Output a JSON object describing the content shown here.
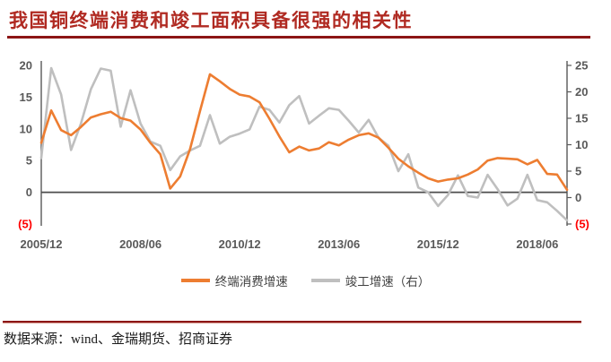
{
  "page": {
    "title": "我国铜终端消费和竣工面积具备很强的相关性",
    "source": "数据来源：wind、金瑞期货、招商证券"
  },
  "legend": [
    {
      "label": "终端消费增速",
      "color": "#ED7D31"
    },
    {
      "label": "竣工增速（右）",
      "color": "#BFBFBF"
    }
  ],
  "colors": {
    "accent_red": "#B02A22",
    "rule_red": "#8C1616",
    "axis_text": "#595959",
    "negative_tick": "#FF0000",
    "line_orange": "#ED7D31",
    "line_gray": "#BFBFBF",
    "axis_line": "#595959",
    "zero_line": "#4D4D4D",
    "legend_text": "#404040",
    "source_text": "#1A1A1A"
  },
  "chart_data": {
    "type": "line",
    "title": "我国铜终端消费和竣工面积具备很强的相关性",
    "xlabel": "",
    "ylabel_left": "",
    "ylabel_right": "",
    "grid": false,
    "legend_position": "bottom",
    "x": [
      "2005/12",
      "2006/03",
      "2006/06",
      "2006/09",
      "2006/12",
      "2007/03",
      "2007/06",
      "2007/09",
      "2007/12",
      "2008/03",
      "2008/06",
      "2008/09",
      "2008/12",
      "2009/03",
      "2009/06",
      "2009/09",
      "2009/12",
      "2010/03",
      "2010/06",
      "2010/09",
      "2010/12",
      "2011/03",
      "2011/06",
      "2011/09",
      "2011/12",
      "2012/03",
      "2012/06",
      "2012/09",
      "2012/12",
      "2013/03",
      "2013/06",
      "2013/09",
      "2013/12",
      "2014/03",
      "2014/06",
      "2014/09",
      "2014/12",
      "2015/03",
      "2015/06",
      "2015/09",
      "2015/12",
      "2016/03",
      "2016/06",
      "2016/09",
      "2016/12",
      "2017/03",
      "2017/06",
      "2017/09",
      "2017/12",
      "2018/03",
      "2018/06",
      "2018/09",
      "2018/12",
      "2019/03"
    ],
    "x_tick_labels": [
      "2005/12",
      "2008/06",
      "2010/12",
      "2013/06",
      "2015/12",
      "2018/06"
    ],
    "x_tick_indices": [
      0,
      10,
      20,
      30,
      40,
      50
    ],
    "series": [
      {
        "name": "终端消费增速",
        "axis": "left",
        "color": "#ED7D31",
        "values": [
          7.8,
          12.9,
          9.8,
          9.0,
          10.3,
          11.8,
          12.3,
          12.7,
          11.7,
          11.3,
          9.9,
          7.8,
          6.0,
          0.6,
          2.5,
          6.8,
          12.8,
          18.6,
          17.5,
          16.3,
          15.4,
          15.1,
          14.2,
          11.6,
          8.8,
          6.3,
          7.2,
          6.6,
          6.9,
          7.9,
          7.4,
          8.3,
          9.0,
          9.3,
          8.6,
          7.0,
          5.3,
          4.1,
          3.1,
          2.2,
          1.7,
          2.0,
          2.2,
          2.8,
          3.6,
          5.0,
          5.4,
          5.3,
          5.2,
          4.4,
          5.1,
          2.9,
          2.8,
          0.4
        ]
      },
      {
        "name": "竣工增速（右）",
        "axis": "right",
        "color": "#BFBFBF",
        "values": [
          7.5,
          24.5,
          19.5,
          9.0,
          14.0,
          20.5,
          24.4,
          24.0,
          13.4,
          20.3,
          14.0,
          10.6,
          9.8,
          5.2,
          7.8,
          8.9,
          9.8,
          15.6,
          10.2,
          11.5,
          12.1,
          12.9,
          17.2,
          16.6,
          14.2,
          17.5,
          19.2,
          14.0,
          15.5,
          16.9,
          16.6,
          14.5,
          12.3,
          14.7,
          11.3,
          9.8,
          5.0,
          8.2,
          1.9,
          1.0,
          -1.6,
          0.5,
          4.2,
          0.3,
          0.0,
          4.3,
          1.6,
          -1.5,
          -0.2,
          4.3,
          -0.5,
          -0.9,
          -2.5,
          -4.3
        ]
      }
    ],
    "axes": {
      "left": {
        "range": [
          -5,
          20
        ],
        "ticks": [
          20,
          15,
          10,
          5,
          0,
          -5
        ],
        "tick_labels": [
          "20",
          "15",
          "10",
          "5",
          "0",
          "(5)"
        ]
      },
      "right": {
        "range": [
          -5,
          25
        ],
        "ticks": [
          25,
          20,
          15,
          10,
          5,
          0,
          -5
        ],
        "tick_labels": [
          "25",
          "20",
          "15",
          "10",
          "5",
          "0",
          "(5)"
        ]
      }
    }
  }
}
